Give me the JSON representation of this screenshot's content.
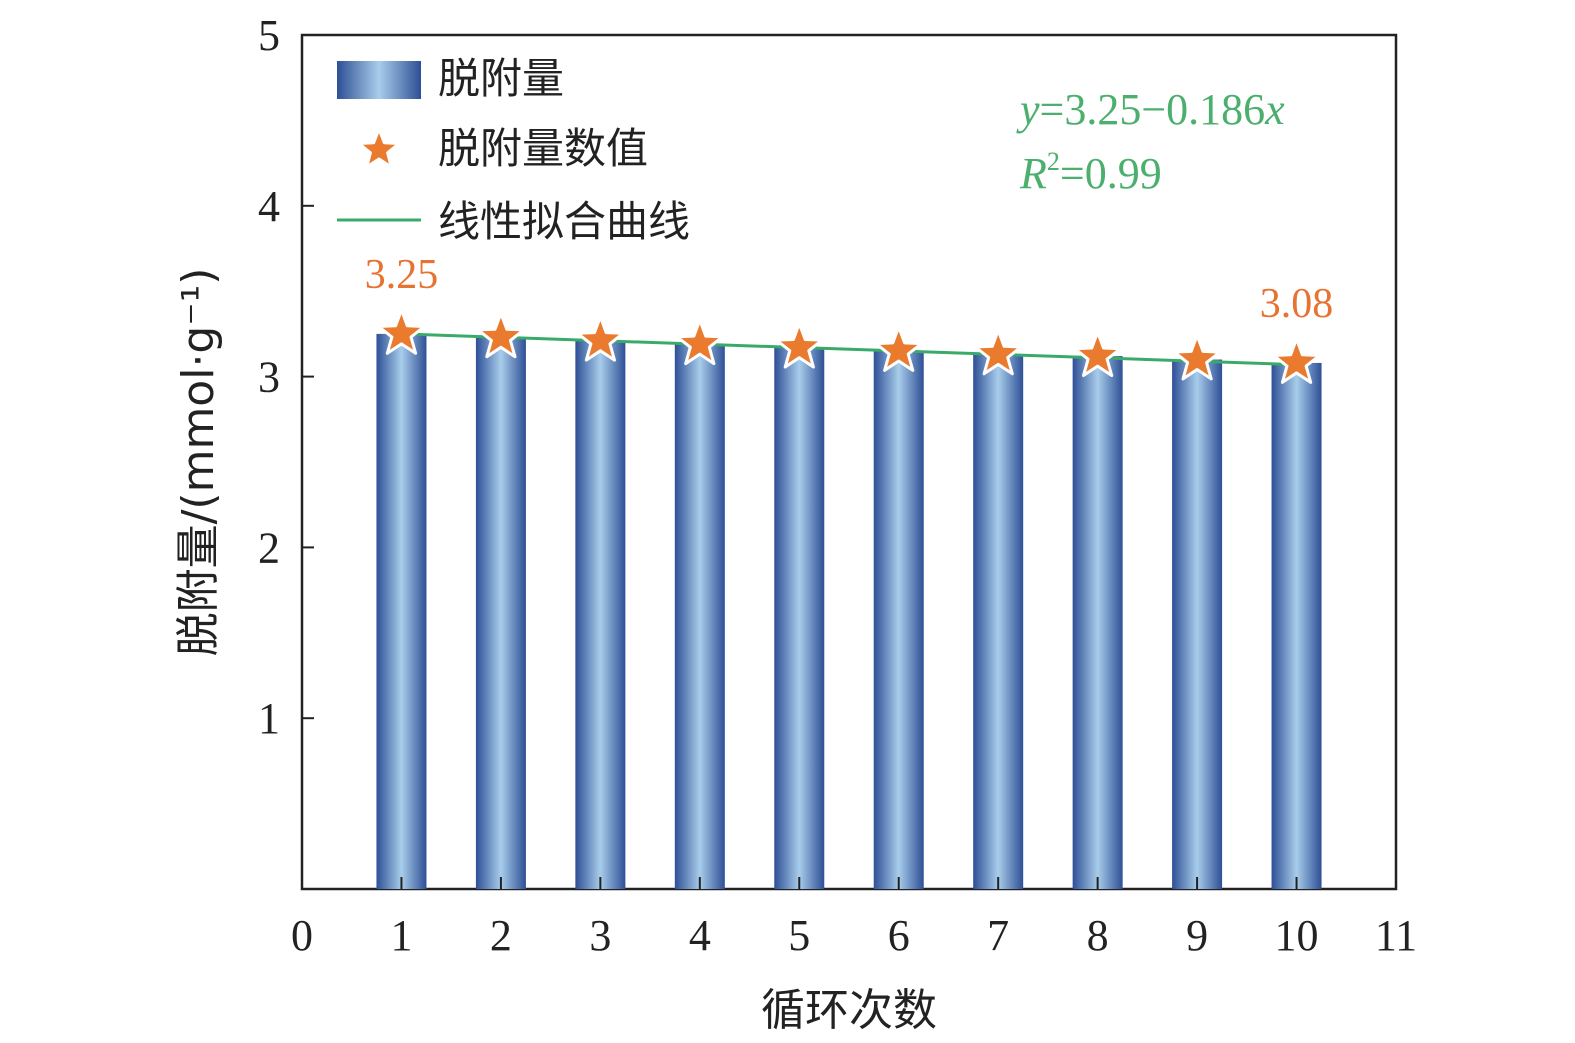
{
  "chart_data": {
    "type": "bar",
    "x": [
      1,
      2,
      3,
      4,
      5,
      6,
      7,
      8,
      9,
      10
    ],
    "series": [
      {
        "name": "脱附量",
        "type": "bar",
        "values": [
          3.25,
          3.23,
          3.21,
          3.19,
          3.17,
          3.15,
          3.13,
          3.12,
          3.1,
          3.08
        ]
      },
      {
        "name": "脱附量数值",
        "type": "scatter",
        "marker": "star",
        "values": [
          3.25,
          3.23,
          3.21,
          3.19,
          3.17,
          3.15,
          3.13,
          3.12,
          3.1,
          3.08
        ]
      },
      {
        "name": "线性拟合曲线",
        "type": "line",
        "values": [
          3.25,
          3.23,
          3.21,
          3.19,
          3.17,
          3.15,
          3.13,
          3.11,
          3.09,
          3.07
        ]
      }
    ],
    "xlabel": "循环次数",
    "ylabel": "脱附量/(mmol·g⁻¹)",
    "xlim": [
      0,
      11
    ],
    "ylim": [
      0,
      5
    ],
    "xticks": [
      0,
      1,
      2,
      3,
      4,
      5,
      6,
      7,
      8,
      9,
      10,
      11
    ],
    "yticks": [
      1,
      2,
      3,
      4,
      5
    ],
    "grid": false,
    "legend_position": "top-left",
    "annotations": [
      {
        "text": "3.25",
        "x": 1,
        "y": 3.25
      },
      {
        "text": "3.08",
        "x": 10,
        "y": 3.08
      }
    ],
    "equation": {
      "y_var": "y",
      "rhs": "=3.25−0.186",
      "x_var": "x",
      "r_var": "R",
      "r_exp": "2",
      "r_rhs": "=0.99"
    }
  },
  "colors": {
    "bar_edge": "#2e4f96",
    "bar_center": "#a8cdea",
    "star_fill": "#ea7a2e",
    "star_stroke": "#ffffff",
    "fit_line": "#3aaa6a",
    "equation": "#4caf6e",
    "data_label": "#e67332",
    "axis": "#222222"
  }
}
